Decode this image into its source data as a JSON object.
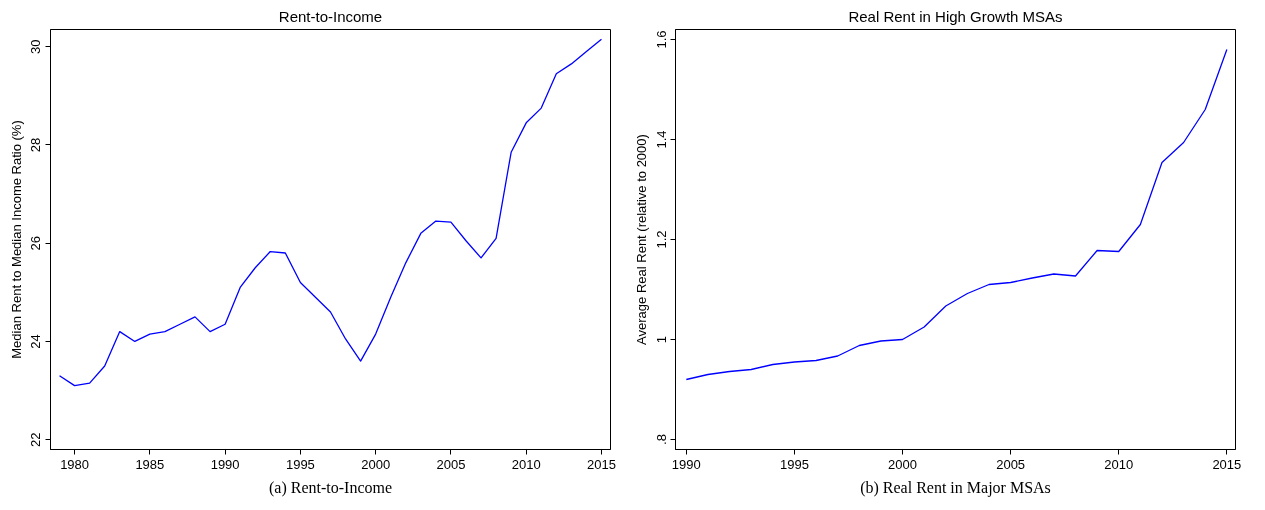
{
  "chart_data": [
    {
      "type": "line",
      "title": "Rent-to-Income",
      "ylabel": "Median Rent to Median Income Ratio (%)",
      "annotations": [
        "(a) Rent-to-Income"
      ],
      "x": [
        1979,
        1980,
        1981,
        1982,
        1983,
        1984,
        1985,
        1986,
        1987,
        1988,
        1989,
        1990,
        1991,
        1992,
        1993,
        1994,
        1995,
        1996,
        1997,
        1998,
        1999,
        2000,
        2001,
        2002,
        2003,
        2004,
        2005,
        2006,
        2007,
        2008,
        2009,
        2010,
        2011,
        2012,
        2013,
        2014,
        2015
      ],
      "series": [
        {
          "color": "#0000ff",
          "values": [
            23.3,
            23.1,
            23.15,
            23.5,
            24.2,
            24.0,
            24.15,
            24.2,
            24.35,
            24.5,
            24.2,
            24.35,
            25.1,
            25.5,
            25.83,
            25.8,
            25.2,
            24.9,
            24.6,
            24.05,
            23.6,
            24.15,
            24.9,
            25.6,
            26.2,
            26.45,
            26.43,
            26.05,
            25.7,
            26.1,
            27.85,
            28.45,
            28.75,
            29.45,
            29.65,
            29.9,
            30.15
          ]
        }
      ],
      "xlim": [
        1978.4,
        2015.6
      ],
      "xticks": [
        1980,
        1985,
        1990,
        1995,
        2000,
        2005,
        2010,
        2015
      ],
      "ylim": [
        21.8,
        30.35
      ],
      "yticks": [
        22,
        24,
        26,
        28,
        30
      ],
      "grid": false
    },
    {
      "type": "line",
      "title": "Real Rent in High Growth MSAs",
      "ylabel": "Average Real Rent (relative to 2000)",
      "annotations": [
        "(b) Real Rent in Major MSAs"
      ],
      "x": [
        1990,
        1991,
        1992,
        1993,
        1994,
        1995,
        1996,
        1997,
        1998,
        1999,
        2000,
        2001,
        2002,
        2003,
        2004,
        2005,
        2006,
        2007,
        2008,
        2009,
        2010,
        2011,
        2012,
        2013,
        2014,
        2015
      ],
      "series": [
        {
          "color": "#0000ff",
          "values": [
            0.92,
            0.93,
            0.936,
            0.94,
            0.95,
            0.955,
            0.958,
            0.967,
            0.988,
            0.997,
            1.0,
            1.025,
            1.067,
            1.092,
            1.11,
            1.114,
            1.123,
            1.131,
            1.127,
            1.178,
            1.176,
            1.23,
            1.354,
            1.394,
            1.46,
            1.58
          ]
        }
      ],
      "xlim": [
        1989.5,
        2015.4
      ],
      "xticks": [
        1990,
        1995,
        2000,
        2005,
        2010,
        2015
      ],
      "ylim": [
        0.78,
        1.62
      ],
      "yticks": [
        {
          "value": 0.8,
          "label": ".8"
        },
        1,
        1.2,
        1.4,
        1.6
      ],
      "grid": false
    }
  ]
}
